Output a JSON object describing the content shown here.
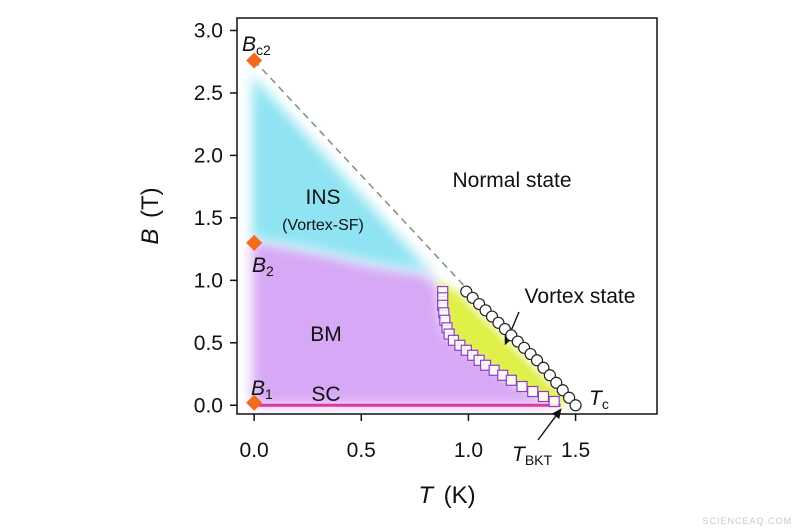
{
  "chart_data": {
    "type": "scatter",
    "title": "",
    "xlabel": {
      "symbol": "T",
      "unit": "(K)"
    },
    "ylabel": {
      "symbol": "B",
      "unit": "(T)"
    },
    "xlim": [
      -0.08,
      1.88
    ],
    "ylim": [
      -0.07,
      3.1
    ],
    "xticks": [
      0.0,
      0.5,
      1.0,
      1.5
    ],
    "xtick_labels": [
      "0.0",
      "0.5",
      "1.0",
      "1.5"
    ],
    "yticks": [
      0.0,
      0.5,
      1.0,
      1.5,
      2.0,
      2.5,
      3.0
    ],
    "ytick_labels": [
      "0.0",
      "0.5",
      "1.0",
      "1.5",
      "2.0",
      "2.5",
      "3.0"
    ],
    "regions": [
      {
        "name": "INS",
        "sublabel": "(Vortex-SF)",
        "color": "#8fe3f2"
      },
      {
        "name": "BM",
        "color": "#d7a8f5"
      },
      {
        "name": "SC",
        "color": "#d0a0f0"
      },
      {
        "name": "Normal state",
        "color": "#ffffff"
      },
      {
        "name": "Vortex state",
        "color": "#dff04a"
      }
    ],
    "critical_fields": [
      {
        "main": "B",
        "sub": "c2",
        "x": 0.0,
        "y": 2.76,
        "color": "#f26a1b"
      },
      {
        "main": "B",
        "sub": "2",
        "x": 0.0,
        "y": 1.3,
        "color": "#f26a1b"
      },
      {
        "main": "B",
        "sub": "1",
        "x": 0.0,
        "y": 0.02,
        "color": "#f26a1b"
      }
    ],
    "temperatures": [
      {
        "main": "T",
        "sub": "c",
        "x": 1.5,
        "y": 0.0
      },
      {
        "main": "T",
        "sub": "BKT",
        "x": 1.43,
        "y": 0.0
      }
    ],
    "series": [
      {
        "marker": "circle",
        "color": "#222222",
        "x": [
          0.99,
          1.02,
          1.05,
          1.08,
          1.11,
          1.14,
          1.17,
          1.2,
          1.23,
          1.26,
          1.29,
          1.32,
          1.35,
          1.38,
          1.41,
          1.44,
          1.47,
          1.5
        ],
        "y": [
          0.91,
          0.86,
          0.81,
          0.76,
          0.71,
          0.66,
          0.61,
          0.56,
          0.51,
          0.46,
          0.41,
          0.36,
          0.3,
          0.24,
          0.18,
          0.12,
          0.06,
          0.0
        ]
      },
      {
        "marker": "square",
        "color": "#8a3fc8",
        "x": [
          0.88,
          0.88,
          0.88,
          0.885,
          0.89,
          0.9,
          0.91,
          0.93,
          0.96,
          0.99,
          1.02,
          1.05,
          1.08,
          1.12,
          1.16,
          1.2,
          1.25,
          1.3,
          1.35,
          1.4
        ],
        "y": [
          0.91,
          0.86,
          0.8,
          0.74,
          0.68,
          0.62,
          0.57,
          0.52,
          0.48,
          0.44,
          0.4,
          0.36,
          0.32,
          0.28,
          0.24,
          0.2,
          0.15,
          0.11,
          0.07,
          0.03
        ]
      }
    ],
    "phase_boundary_dashed": {
      "x": [
        0.0,
        1.5
      ],
      "y": [
        2.76,
        0.0
      ]
    },
    "sc_line": {
      "x": [
        0.0,
        1.43
      ],
      "y": [
        0.0,
        0.0
      ],
      "color": "#e0389f"
    },
    "annotations": [
      {
        "text": "Vortex state",
        "arrow_to": [
          1.17,
          0.48
        ]
      },
      {
        "text": "T_BKT",
        "arrow_to": [
          1.43,
          0.0
        ]
      }
    ],
    "grid": false,
    "legend": "none"
  },
  "watermark": "SCIENCEAQ.COM"
}
